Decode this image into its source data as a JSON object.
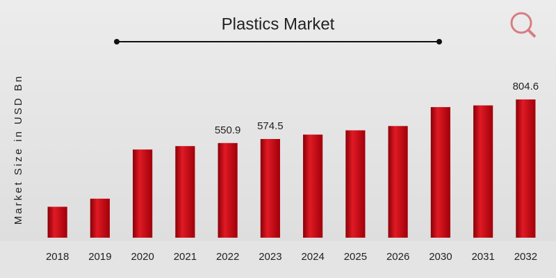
{
  "chart_data": {
    "type": "bar",
    "title": "Plastics Market",
    "y_label": "Market Size in USD Bn",
    "categories": [
      "2018",
      "2019",
      "2020",
      "2021",
      "2022",
      "2023",
      "2024",
      "2025",
      "2026",
      "2030",
      "2031",
      "2032"
    ],
    "values": [
      180,
      227,
      513,
      533,
      550.9,
      574.5,
      600,
      625,
      650,
      760,
      770,
      804.6
    ],
    "value_labels": [
      null,
      null,
      null,
      null,
      "550.9",
      "574.5",
      null,
      null,
      null,
      null,
      null,
      "804.6"
    ],
    "color": "#c8101a",
    "ylim": [
      0,
      850
    ]
  }
}
